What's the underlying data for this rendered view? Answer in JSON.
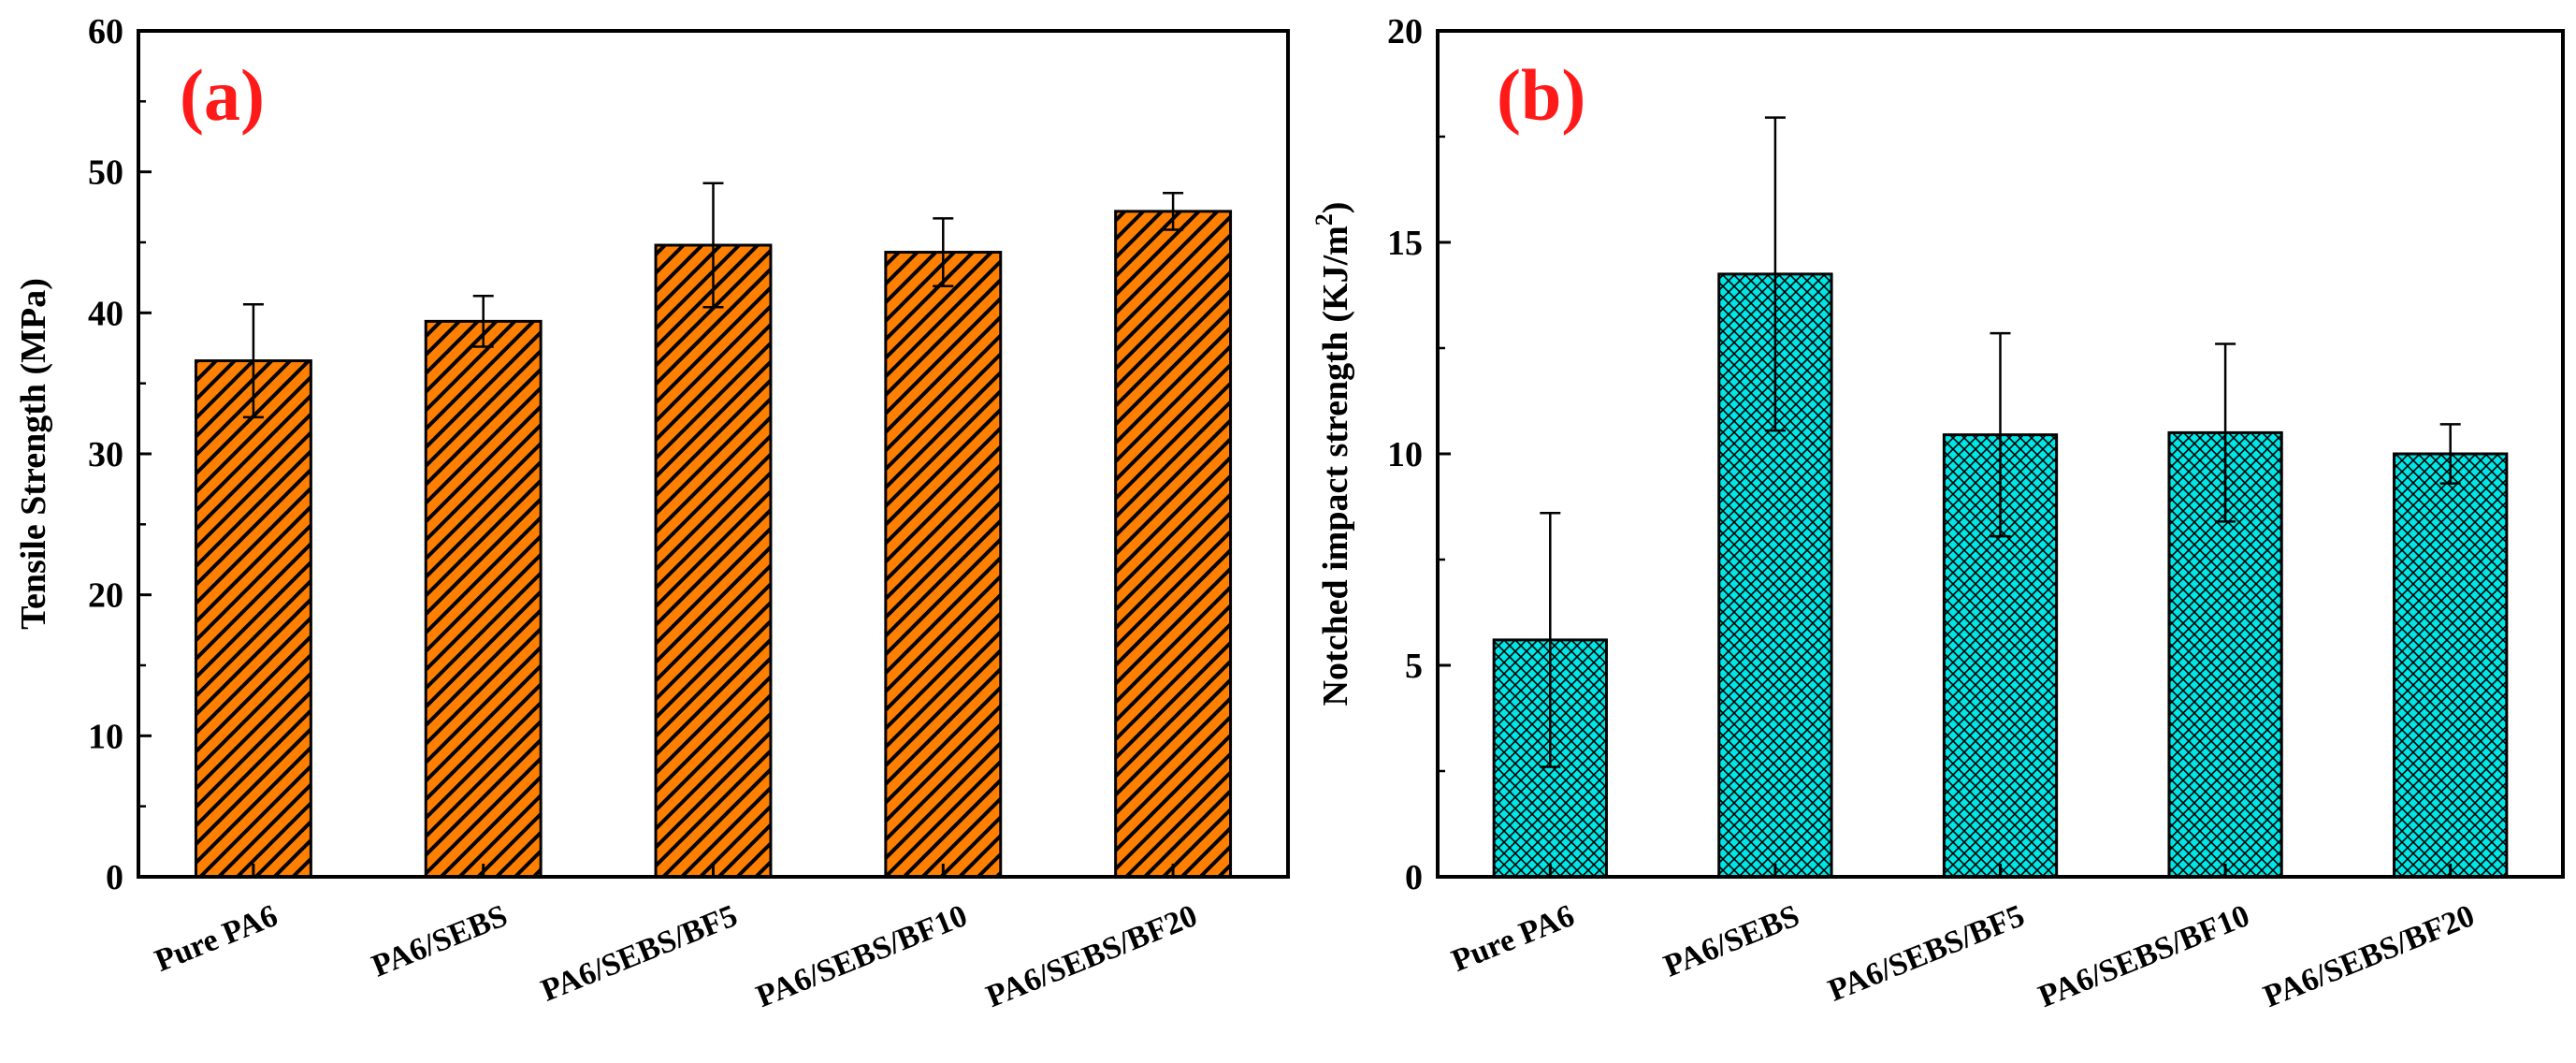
{
  "chart_data": [
    {
      "type": "bar",
      "panel_label": "(a)",
      "categories": [
        "Pure PA6",
        "PA6/SEBS",
        "PA6/SEBS/BF5",
        "PA6/SEBS/BF10",
        "PA6/SEBS/BF20"
      ],
      "values": [
        36.6,
        39.4,
        44.8,
        44.3,
        47.2
      ],
      "errors": [
        4.0,
        1.8,
        4.4,
        2.4,
        1.3
      ],
      "title": "",
      "xlabel": "",
      "ylabel": "Tensile Strength (MPa)",
      "ylim": [
        0,
        60
      ],
      "yticks": [
        0,
        10,
        20,
        30,
        40,
        50,
        60
      ],
      "fill_color": "#ff7f00",
      "pattern": "diagonal-hatch",
      "grid": false
    },
    {
      "type": "bar",
      "panel_label": "(b)",
      "categories": [
        "Pure PA6",
        "PA6/SEBS",
        "PA6/SEBS/BF5",
        "PA6/SEBS/BF10",
        "PA6/SEBS/BF20"
      ],
      "values": [
        5.6,
        14.25,
        10.45,
        10.5,
        10.0
      ],
      "errors": [
        3.0,
        3.7,
        2.4,
        2.1,
        0.7
      ],
      "title": "",
      "xlabel": "",
      "ylabel": "Notched impact strength (KJ/m",
      "ylabel_superscript": "2",
      "ylabel_suffix": ")",
      "ylim": [
        0,
        20
      ],
      "yticks": [
        0,
        5,
        10,
        15,
        20
      ],
      "fill_color": "#00e5e5",
      "pattern": "crosshatch",
      "grid": false
    }
  ],
  "colors": {
    "panel_label": "#ff1a1a",
    "axis": "#000000",
    "hatch": "#000000"
  }
}
